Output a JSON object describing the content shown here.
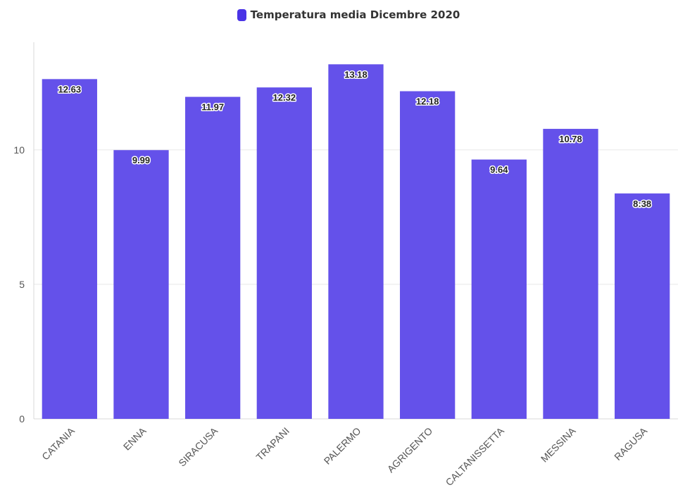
{
  "legend": {
    "label": "Temperatura media Dicembre 2020",
    "color": "#4a34e6"
  },
  "chart_data": {
    "type": "bar",
    "categories": [
      "CATANIA",
      "ENNA",
      "SIRACUSA",
      "TRAPANI",
      "PALERMO",
      "AGRIGENTO",
      "CALTANISSETTA",
      "MESSINA",
      "RAGUSA"
    ],
    "series": [
      {
        "name": "Temperatura media Dicembre 2020",
        "values": [
          12.63,
          9.99,
          11.97,
          12.32,
          13.18,
          12.18,
          9.64,
          10.78,
          8.38
        ],
        "labels": [
          "12.63",
          "9.99",
          "11.97",
          "12.32",
          "13.18",
          "12.18",
          "9.64",
          "10.78",
          "8:38"
        ]
      }
    ],
    "bar_color": "#6451ea",
    "ylim": [
      0,
      14
    ],
    "yticks": [
      0,
      5,
      10
    ],
    "grid": true,
    "legend_position": "top-center",
    "xlabel": "",
    "ylabel": ""
  }
}
